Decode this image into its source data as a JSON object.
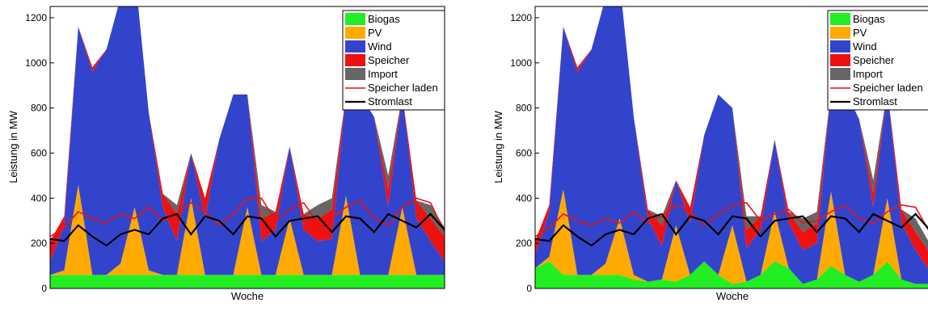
{
  "chart_data": [
    {
      "type": "area",
      "xlabel": "Woche",
      "ylabel": "Leistung in MW",
      "ylim": [
        0,
        1250
      ],
      "yticks": [
        0,
        200,
        400,
        600,
        800,
        1000,
        1200
      ],
      "xlim": [
        0,
        168
      ],
      "grid": false,
      "legend_position": "top-right",
      "legend": [
        "Biogas",
        "PV",
        "Wind",
        "Speicher",
        "Import",
        "Speicher laden",
        "Stromlast"
      ],
      "colors": {
        "Biogas": "#22ee22",
        "PV": "#ffaa00",
        "Wind": "#3344cc",
        "Speicher": "#ee1111",
        "Import": "#666666",
        "Speicher laden": "#ee1111",
        "Stromlast": "#000000"
      },
      "x": [
        0,
        6,
        12,
        18,
        24,
        30,
        36,
        42,
        48,
        54,
        60,
        66,
        72,
        78,
        84,
        90,
        96,
        102,
        108,
        114,
        120,
        126,
        132,
        138,
        144,
        150,
        156,
        162,
        168
      ],
      "series": [
        {
          "name": "Biogas",
          "values": [
            60,
            60,
            60,
            60,
            60,
            60,
            60,
            60,
            60,
            60,
            60,
            60,
            60,
            60,
            60,
            60,
            60,
            60,
            60,
            60,
            60,
            60,
            60,
            60,
            60,
            60,
            60,
            60,
            60
          ]
        },
        {
          "name": "PV",
          "values": [
            0,
            20,
            400,
            0,
            0,
            50,
            300,
            20,
            0,
            0,
            340,
            0,
            0,
            0,
            300,
            0,
            0,
            250,
            0,
            0,
            0,
            350,
            0,
            0,
            0,
            300,
            0,
            0,
            0
          ]
        },
        {
          "name": "Wind",
          "values": [
            60,
            200,
            700,
            900,
            1000,
            1180,
            1050,
            700,
            300,
            150,
            200,
            250,
            600,
            800,
            500,
            150,
            200,
            320,
            200,
            150,
            160,
            450,
            800,
            700,
            300,
            500,
            250,
            150,
            60
          ]
        },
        {
          "name": "Speicher",
          "values": [
            90,
            40,
            0,
            20,
            0,
            0,
            0,
            0,
            60,
            120,
            0,
            90,
            0,
            0,
            0,
            100,
            80,
            0,
            70,
            100,
            130,
            0,
            0,
            0,
            80,
            0,
            80,
            100,
            110
          ]
        },
        {
          "name": "Import",
          "values": [
            0,
            0,
            0,
            0,
            0,
            0,
            0,
            0,
            0,
            40,
            0,
            0,
            0,
            0,
            0,
            60,
            0,
            0,
            0,
            60,
            50,
            0,
            0,
            0,
            60,
            0,
            0,
            60,
            40
          ]
        },
        {
          "name": "Speicher laden",
          "values": [
            230,
            270,
            340,
            310,
            290,
            330,
            310,
            360,
            300,
            330,
            380,
            340,
            280,
            330,
            400,
            400,
            300,
            350,
            380,
            290,
            310,
            360,
            390,
            310,
            280,
            360,
            400,
            380,
            250
          ]
        },
        {
          "name": "Stromlast",
          "values": [
            220,
            210,
            280,
            230,
            190,
            240,
            260,
            240,
            310,
            330,
            240,
            320,
            300,
            240,
            320,
            310,
            230,
            300,
            310,
            320,
            250,
            320,
            310,
            250,
            330,
            300,
            270,
            330,
            260
          ]
        }
      ]
    },
    {
      "type": "area",
      "xlabel": "Woche",
      "ylabel": "Leistung in MW",
      "ylim": [
        0,
        1250
      ],
      "yticks": [
        0,
        200,
        400,
        600,
        800,
        1000,
        1200
      ],
      "xlim": [
        0,
        168
      ],
      "grid": false,
      "legend_position": "top-right",
      "legend": [
        "Biogas",
        "PV",
        "Wind",
        "Speicher",
        "Import",
        "Speicher laden",
        "Stromlast"
      ],
      "colors": {
        "Biogas": "#22ee22",
        "PV": "#ffaa00",
        "Wind": "#3344cc",
        "Speicher": "#ee1111",
        "Import": "#666666",
        "Speicher laden": "#ee1111",
        "Stromlast": "#000000"
      },
      "x": [
        0,
        6,
        12,
        18,
        24,
        30,
        36,
        42,
        48,
        54,
        60,
        66,
        72,
        78,
        84,
        90,
        96,
        102,
        108,
        114,
        120,
        126,
        132,
        138,
        144,
        150,
        156,
        162,
        168
      ],
      "series": [
        {
          "name": "Biogas",
          "values": [
            90,
            120,
            60,
            60,
            60,
            60,
            60,
            40,
            30,
            40,
            30,
            60,
            120,
            60,
            20,
            30,
            60,
            120,
            90,
            20,
            40,
            100,
            60,
            30,
            60,
            120,
            40,
            20,
            20
          ]
        },
        {
          "name": "PV",
          "values": [
            0,
            20,
            380,
            0,
            0,
            50,
            250,
            20,
            0,
            0,
            250,
            0,
            0,
            0,
            260,
            0,
            0,
            220,
            0,
            0,
            0,
            330,
            0,
            0,
            0,
            280,
            0,
            0,
            0
          ]
        },
        {
          "name": "Wind",
          "values": [
            60,
            200,
            720,
            900,
            1000,
            1180,
            1050,
            700,
            280,
            150,
            200,
            230,
            560,
            800,
            520,
            150,
            200,
            320,
            200,
            150,
            160,
            450,
            820,
            720,
            300,
            480,
            250,
            150,
            60
          ]
        },
        {
          "name": "Speicher",
          "values": [
            60,
            30,
            0,
            20,
            0,
            0,
            0,
            0,
            40,
            90,
            0,
            70,
            0,
            0,
            0,
            80,
            60,
            0,
            50,
            80,
            90,
            0,
            0,
            0,
            60,
            0,
            60,
            80,
            80
          ]
        },
        {
          "name": "Import",
          "values": [
            0,
            0,
            0,
            0,
            0,
            0,
            0,
            0,
            0,
            40,
            0,
            0,
            0,
            0,
            0,
            60,
            0,
            0,
            0,
            60,
            50,
            0,
            0,
            0,
            60,
            0,
            0,
            60,
            40
          ]
        },
        {
          "name": "Speicher laden",
          "values": [
            230,
            270,
            330,
            300,
            280,
            310,
            290,
            340,
            290,
            320,
            370,
            340,
            280,
            330,
            370,
            380,
            300,
            330,
            350,
            290,
            300,
            340,
            370,
            310,
            290,
            340,
            370,
            360,
            250
          ]
        },
        {
          "name": "Stromlast",
          "values": [
            220,
            210,
            280,
            230,
            190,
            240,
            260,
            240,
            310,
            330,
            240,
            320,
            300,
            240,
            320,
            310,
            230,
            300,
            310,
            320,
            250,
            320,
            310,
            250,
            330,
            300,
            270,
            330,
            260
          ]
        }
      ]
    }
  ]
}
